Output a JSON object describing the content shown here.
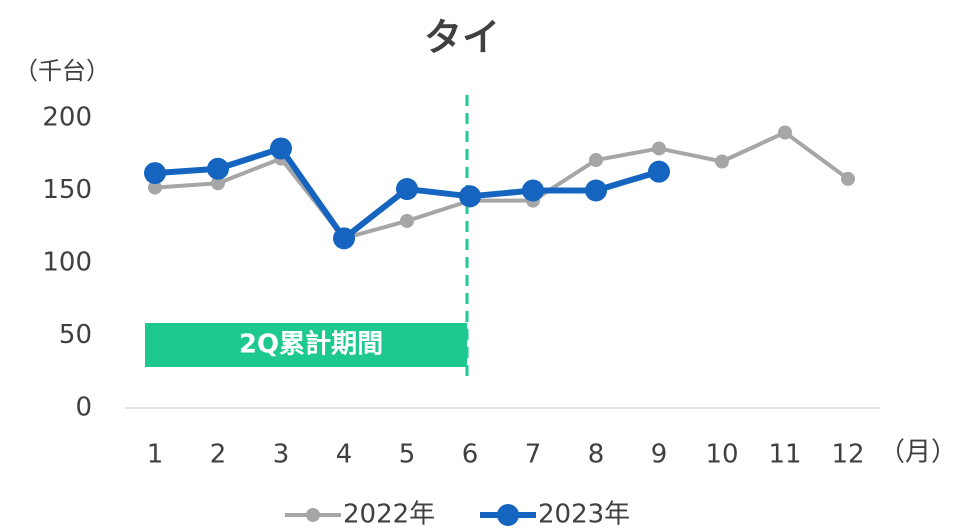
{
  "chart_data": {
    "type": "line",
    "title": "タイ",
    "y_unit": "（千台）",
    "x_unit": "（月）",
    "categories": [
      "1",
      "2",
      "3",
      "4",
      "5",
      "6",
      "7",
      "8",
      "9",
      "10",
      "11",
      "12"
    ],
    "series": [
      {
        "name": "2022年",
        "color": "#a6a6a6",
        "values": [
          152,
          155,
          172,
          117,
          129,
          143,
          143,
          171,
          179,
          170,
          190,
          158
        ]
      },
      {
        "name": "2023年",
        "color": "#1565c0",
        "values": [
          162,
          165,
          179,
          117,
          151,
          146,
          150,
          150,
          163,
          null,
          null,
          null
        ]
      }
    ],
    "ylim": [
      0,
      200
    ],
    "yticks": [
      0,
      50,
      100,
      150,
      200
    ],
    "grid": false,
    "annotation": "2Q累計期間",
    "legend": "bottom"
  }
}
